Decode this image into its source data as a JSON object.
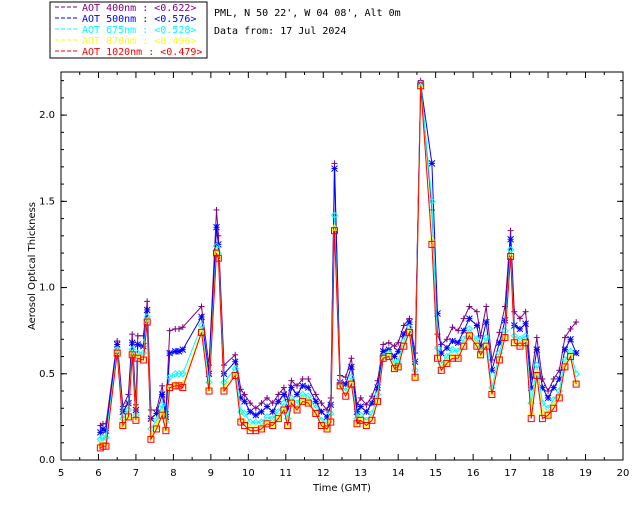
{
  "header": {
    "location": "PML, N 50 22', W 04 08', Alt 0m",
    "data_from": "Data from: 17 Jul 2024"
  },
  "chart_data": {
    "type": "line",
    "xlabel": "Time (GMT)",
    "ylabel": "Aerosol Optical Thickness",
    "xlim": [
      5,
      20
    ],
    "ylim": [
      0,
      2.25
    ],
    "xticks": [
      5,
      6,
      7,
      8,
      9,
      10,
      11,
      12,
      13,
      14,
      15,
      16,
      17,
      18,
      19,
      20
    ],
    "yticks": [
      0.0,
      0.5,
      1.0,
      1.5,
      2.0
    ],
    "ytick_labels": [
      "0.0",
      "0.5",
      "1.0",
      "1.5",
      "2.0"
    ],
    "legend_position": "top-left outside plot",
    "x": [
      6.05,
      6.12,
      6.2,
      6.5,
      6.65,
      6.8,
      6.9,
      7.0,
      7.05,
      7.2,
      7.3,
      7.4,
      7.55,
      7.7,
      7.8,
      7.9,
      8.05,
      8.15,
      8.25,
      8.75,
      8.95,
      9.15,
      9.2,
      9.35,
      9.65,
      9.8,
      9.9,
      10.05,
      10.2,
      10.35,
      10.5,
      10.65,
      10.8,
      10.95,
      11.05,
      11.15,
      11.3,
      11.45,
      11.6,
      11.8,
      11.95,
      12.1,
      12.2,
      12.3,
      12.45,
      12.6,
      12.75,
      12.9,
      13.0,
      13.15,
      13.3,
      13.45,
      13.6,
      13.75,
      13.9,
      14.0,
      14.15,
      14.3,
      14.45,
      14.6,
      14.9,
      15.05,
      15.15,
      15.3,
      15.45,
      15.6,
      15.75,
      15.9,
      16.1,
      16.2,
      16.35,
      16.5,
      16.7,
      16.85,
      17.0,
      17.1,
      17.25,
      17.4,
      17.55,
      17.7,
      17.85,
      18.0,
      18.15,
      18.3,
      18.45,
      18.6,
      18.75
    ],
    "series": [
      {
        "name": "AOT  400nm : <0.622>",
        "color": "#800080",
        "marker": "plus",
        "values": [
          0.2,
          0.21,
          0.21,
          0.69,
          0.31,
          0.38,
          0.73,
          0.32,
          0.72,
          0.72,
          0.92,
          0.29,
          0.29,
          0.43,
          0.28,
          0.75,
          0.76,
          0.76,
          0.77,
          0.89,
          0.55,
          1.45,
          1.3,
          0.55,
          0.61,
          0.41,
          0.38,
          0.33,
          0.3,
          0.33,
          0.36,
          0.33,
          0.38,
          0.42,
          0.35,
          0.46,
          0.43,
          0.47,
          0.47,
          0.38,
          0.33,
          0.29,
          0.36,
          1.72,
          0.49,
          0.48,
          0.59,
          0.32,
          0.36,
          0.32,
          0.37,
          0.46,
          0.67,
          0.68,
          0.66,
          0.68,
          0.78,
          0.82,
          0.62,
          2.2,
          1.45,
          0.73,
          0.67,
          0.7,
          0.77,
          0.75,
          0.82,
          0.89,
          0.86,
          0.72,
          0.89,
          0.58,
          0.74,
          0.89,
          1.33,
          0.86,
          0.82,
          0.86,
          0.48,
          0.71,
          0.47,
          0.4,
          0.47,
          0.52,
          0.71,
          0.76,
          0.8
        ]
      },
      {
        "name": "AOT  500nm : <0.576>",
        "color": "#0000ff",
        "marker": "star",
        "values": [
          0.16,
          0.18,
          0.17,
          0.67,
          0.28,
          0.33,
          0.68,
          0.29,
          0.67,
          0.66,
          0.87,
          0.24,
          0.27,
          0.38,
          0.25,
          0.62,
          0.63,
          0.63,
          0.64,
          0.83,
          0.5,
          1.35,
          1.25,
          0.5,
          0.57,
          0.36,
          0.34,
          0.28,
          0.26,
          0.28,
          0.31,
          0.28,
          0.34,
          0.38,
          0.3,
          0.42,
          0.38,
          0.43,
          0.42,
          0.34,
          0.28,
          0.25,
          0.32,
          1.69,
          0.45,
          0.44,
          0.54,
          0.28,
          0.31,
          0.28,
          0.33,
          0.42,
          0.63,
          0.64,
          0.6,
          0.63,
          0.73,
          0.8,
          0.57,
          2.18,
          1.72,
          0.85,
          0.62,
          0.65,
          0.69,
          0.68,
          0.75,
          0.82,
          0.78,
          0.66,
          0.8,
          0.52,
          0.68,
          0.81,
          1.28,
          0.78,
          0.76,
          0.79,
          0.42,
          0.64,
          0.42,
          0.36,
          0.42,
          0.47,
          0.64,
          0.7,
          0.62
        ]
      },
      {
        "name": "AOT  675nm : <0.528>",
        "color": "#00ffff",
        "marker": "diamond",
        "values": [
          0.12,
          0.13,
          0.13,
          0.64,
          0.24,
          0.29,
          0.64,
          0.26,
          0.62,
          0.62,
          0.83,
          0.18,
          0.23,
          0.32,
          0.22,
          0.48,
          0.5,
          0.5,
          0.5,
          0.78,
          0.45,
          1.24,
          1.2,
          0.45,
          0.53,
          0.28,
          0.27,
          0.22,
          0.22,
          0.22,
          0.25,
          0.24,
          0.28,
          0.33,
          0.24,
          0.36,
          0.33,
          0.38,
          0.37,
          0.3,
          0.23,
          0.21,
          0.27,
          1.42,
          0.44,
          0.4,
          0.48,
          0.24,
          0.26,
          0.23,
          0.27,
          0.38,
          0.6,
          0.62,
          0.56,
          0.57,
          0.69,
          0.77,
          0.52,
          2.18,
          1.5,
          0.65,
          0.56,
          0.6,
          0.64,
          0.63,
          0.7,
          0.76,
          0.7,
          0.63,
          0.71,
          0.42,
          0.62,
          0.75,
          1.22,
          0.72,
          0.7,
          0.72,
          0.33,
          0.55,
          0.33,
          0.3,
          0.35,
          0.4,
          0.58,
          0.63,
          0.5
        ]
      },
      {
        "name": "AOT  870nm : <0.496>",
        "color": "#ffff00",
        "marker": "triangle",
        "values": [
          0.09,
          0.09,
          0.09,
          0.63,
          0.21,
          0.26,
          0.62,
          0.24,
          0.6,
          0.59,
          0.81,
          0.14,
          0.2,
          0.28,
          0.19,
          0.43,
          0.44,
          0.44,
          0.44,
          0.75,
          0.42,
          1.21,
          1.18,
          0.42,
          0.5,
          0.24,
          0.22,
          0.19,
          0.19,
          0.19,
          0.22,
          0.21,
          0.25,
          0.3,
          0.21,
          0.34,
          0.3,
          0.35,
          0.34,
          0.28,
          0.21,
          0.19,
          0.24,
          1.35,
          0.43,
          0.38,
          0.45,
          0.22,
          0.24,
          0.21,
          0.24,
          0.35,
          0.59,
          0.61,
          0.54,
          0.55,
          0.67,
          0.75,
          0.49,
          2.17,
          1.28,
          0.6,
          0.53,
          0.57,
          0.6,
          0.6,
          0.67,
          0.73,
          0.67,
          0.62,
          0.67,
          0.39,
          0.59,
          0.72,
          1.19,
          0.69,
          0.67,
          0.69,
          0.28,
          0.51,
          0.28,
          0.27,
          0.32,
          0.37,
          0.55,
          0.61,
          0.45
        ]
      },
      {
        "name": "AOT 1020nm : <0.479>",
        "color": "#ff0000",
        "marker": "square",
        "values": [
          0.07,
          0.08,
          0.08,
          0.62,
          0.2,
          0.25,
          0.61,
          0.23,
          0.59,
          0.58,
          0.8,
          0.12,
          0.18,
          0.26,
          0.17,
          0.42,
          0.43,
          0.43,
          0.42,
          0.74,
          0.4,
          1.2,
          1.17,
          0.4,
          0.49,
          0.22,
          0.2,
          0.17,
          0.17,
          0.18,
          0.21,
          0.2,
          0.24,
          0.29,
          0.2,
          0.33,
          0.29,
          0.34,
          0.33,
          0.27,
          0.2,
          0.18,
          0.22,
          1.33,
          0.43,
          0.37,
          0.44,
          0.21,
          0.23,
          0.2,
          0.23,
          0.34,
          0.59,
          0.6,
          0.53,
          0.54,
          0.66,
          0.74,
          0.48,
          2.17,
          1.25,
          0.59,
          0.52,
          0.56,
          0.59,
          0.59,
          0.66,
          0.72,
          0.66,
          0.61,
          0.66,
          0.38,
          0.58,
          0.71,
          1.18,
          0.68,
          0.66,
          0.68,
          0.24,
          0.49,
          0.24,
          0.26,
          0.3,
          0.36,
          0.54,
          0.6,
          0.44
        ]
      }
    ]
  }
}
